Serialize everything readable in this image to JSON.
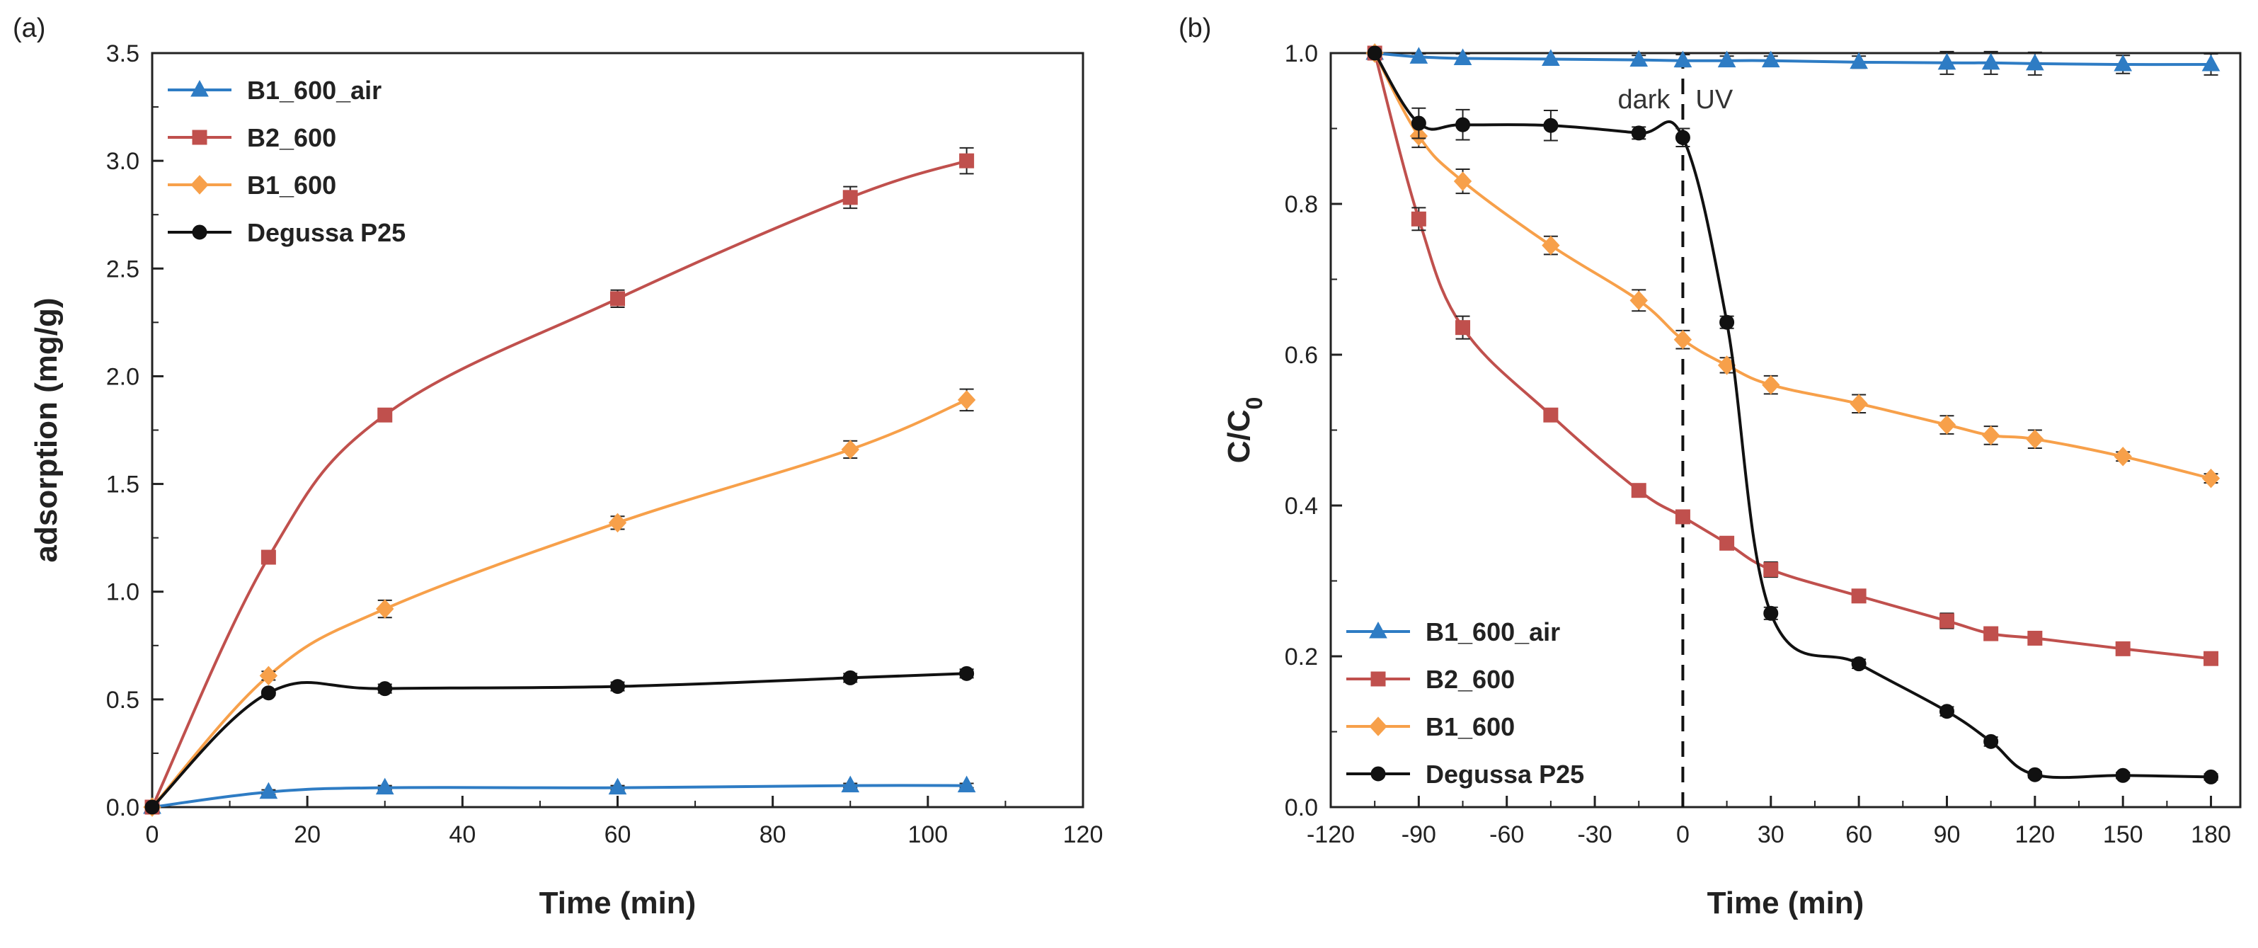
{
  "colors": {
    "B1_600_air": "#2e7cc4",
    "B2_600": "#c0504d",
    "B1_600": "#f7a04a",
    "Degussa P25": "#111111",
    "axis": "#222222"
  },
  "chart_data": [
    {
      "type": "line",
      "panel_label": "(a)",
      "xlabel": "Time (min)",
      "ylabel": "adsorption (mg/g)",
      "xlim": [
        0,
        120
      ],
      "ylim": [
        0,
        3.5
      ],
      "xticks": [
        "0",
        "20",
        "40",
        "60",
        "80",
        "100",
        "120"
      ],
      "xtick_values": [
        0,
        20,
        40,
        60,
        80,
        100,
        120
      ],
      "yticks": [
        "0.0",
        "0.5",
        "1.0",
        "1.5",
        "2.0",
        "2.5",
        "3.0",
        "3.5"
      ],
      "ytick_values": [
        0,
        0.5,
        1,
        1.5,
        2,
        2.5,
        3,
        3.5
      ],
      "grid": false,
      "legend_position": "top-left",
      "series": [
        {
          "name": "B1_600_air",
          "marker": "triangle",
          "x": [
            0,
            15,
            30,
            60,
            90,
            105
          ],
          "y": [
            0,
            0.07,
            0.09,
            0.09,
            0.1,
            0.1
          ],
          "err": [
            0,
            0.01,
            0.01,
            0.01,
            0.01,
            0.01
          ]
        },
        {
          "name": "B2_600",
          "marker": "square",
          "x": [
            0,
            15,
            30,
            60,
            90,
            105
          ],
          "y": [
            0,
            1.16,
            1.82,
            2.36,
            2.83,
            3.0
          ],
          "err": [
            0,
            0.02,
            0.02,
            0.04,
            0.05,
            0.06
          ]
        },
        {
          "name": "B1_600",
          "marker": "diamond",
          "x": [
            0,
            15,
            30,
            60,
            90,
            105
          ],
          "y": [
            0,
            0.61,
            0.92,
            1.32,
            1.66,
            1.89
          ],
          "err": [
            0,
            0.02,
            0.04,
            0.03,
            0.04,
            0.05
          ]
        },
        {
          "name": "Degussa P25",
          "marker": "circle",
          "x": [
            0,
            15,
            30,
            60,
            90,
            105
          ],
          "y": [
            0,
            0.53,
            0.55,
            0.56,
            0.6,
            0.62
          ],
          "err": [
            0,
            0.01,
            0.02,
            0.02,
            0.02,
            0.02
          ]
        }
      ]
    },
    {
      "type": "line",
      "panel_label": "(b)",
      "xlabel": "Time (min)",
      "ylabel": "C/C",
      "ylabel_subscript": "0",
      "xlim": [
        -120,
        190
      ],
      "ylim": [
        0,
        1.0
      ],
      "xticks": [
        "-120",
        "-90",
        "-60",
        "-30",
        "0",
        "30",
        "60",
        "90",
        "120",
        "150",
        "180"
      ],
      "xtick_values": [
        -120,
        -90,
        -60,
        -30,
        0,
        30,
        60,
        90,
        120,
        150,
        180
      ],
      "yticks": [
        "0.0",
        "0.2",
        "0.4",
        "0.6",
        "0.8",
        "1.0"
      ],
      "ytick_values": [
        0,
        0.2,
        0.4,
        0.6,
        0.8,
        1.0
      ],
      "grid": false,
      "legend_position": "bottom-left",
      "annotations": {
        "left": "dark",
        "right": "UV",
        "divider_x": 0
      },
      "series": [
        {
          "name": "B1_600_air",
          "marker": "triangle",
          "x": [
            -105,
            -90,
            -75,
            -45,
            -15,
            0,
            15,
            30,
            60,
            90,
            105,
            120,
            150,
            180
          ],
          "y": [
            1.0,
            0.995,
            0.993,
            0.992,
            0.991,
            0.99,
            0.99,
            0.99,
            0.988,
            0.987,
            0.987,
            0.986,
            0.985,
            0.985
          ],
          "err": [
            0,
            0.004,
            0.006,
            0.008,
            0.006,
            0.008,
            0.006,
            0.006,
            0.008,
            0.015,
            0.015,
            0.015,
            0.012,
            0.014
          ]
        },
        {
          "name": "B2_600",
          "marker": "square",
          "x": [
            -105,
            -90,
            -75,
            -45,
            -15,
            0,
            15,
            30,
            60,
            90,
            105,
            120,
            150,
            180
          ],
          "y": [
            1.0,
            0.78,
            0.636,
            0.52,
            0.42,
            0.385,
            0.35,
            0.315,
            0.28,
            0.247,
            0.23,
            0.224,
            0.21,
            0.197
          ],
          "err": [
            0,
            0.015,
            0.015,
            0.008,
            0.008,
            0.008,
            0.008,
            0.01,
            0.008,
            0.01,
            0.008,
            0.008,
            0.006,
            0.008
          ]
        },
        {
          "name": "B1_600",
          "marker": "diamond",
          "x": [
            -105,
            -90,
            -75,
            -45,
            -15,
            0,
            15,
            30,
            60,
            90,
            105,
            120,
            150,
            180
          ],
          "y": [
            1.0,
            0.89,
            0.83,
            0.745,
            0.672,
            0.62,
            0.586,
            0.56,
            0.535,
            0.507,
            0.493,
            0.488,
            0.465,
            0.436
          ],
          "err": [
            0,
            0.015,
            0.016,
            0.012,
            0.014,
            0.012,
            0.01,
            0.012,
            0.012,
            0.012,
            0.012,
            0.012,
            0.006,
            0.006
          ]
        },
        {
          "name": "Degussa P25",
          "marker": "circle",
          "x": [
            -105,
            -90,
            -75,
            -45,
            -15,
            0,
            15,
            30,
            60,
            90,
            105,
            120,
            150,
            180
          ],
          "y": [
            1.0,
            0.907,
            0.905,
            0.904,
            0.894,
            0.888,
            0.643,
            0.257,
            0.19,
            0.127,
            0.087,
            0.043,
            0.042,
            0.04
          ],
          "err": [
            0,
            0.02,
            0.02,
            0.02,
            0.008,
            0.012,
            0.008,
            0.008,
            0.006,
            0.006,
            0.006,
            0.004,
            0.004,
            0.004
          ]
        }
      ]
    }
  ]
}
